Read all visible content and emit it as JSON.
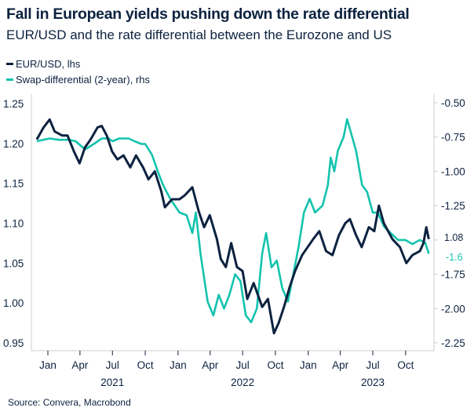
{
  "chart_data": {
    "type": "line",
    "title": "Fall in European yields pushing down the rate differential",
    "subtitle": "EUR/USD and the rate differential between the Eurozone and US",
    "source": "Source: Convera, Macrobond",
    "colors": {
      "eurusd": "#0d2240",
      "swap": "#14c3ad",
      "axis": "#cccccc"
    },
    "legend_position": "top-left",
    "grid": false,
    "x_ticks": [
      {
        "date": "2021-01-01",
        "label": "Jan"
      },
      {
        "date": "2021-04-01",
        "label": "Apr"
      },
      {
        "date": "2021-07-01",
        "label": "Jul"
      },
      {
        "date": "2021-10-01",
        "label": "Oct"
      },
      {
        "date": "2022-01-01",
        "label": "Jan"
      },
      {
        "date": "2022-04-01",
        "label": "Apr"
      },
      {
        "date": "2022-07-01",
        "label": "Jul"
      },
      {
        "date": "2022-10-01",
        "label": "Oct"
      },
      {
        "date": "2023-01-01",
        "label": "Jan"
      },
      {
        "date": "2023-04-01",
        "label": "Apr"
      },
      {
        "date": "2023-07-01",
        "label": "Jul"
      },
      {
        "date": "2023-10-01",
        "label": "Oct"
      }
    ],
    "x_years": [
      {
        "date": "2021-07-01",
        "label": "2021"
      },
      {
        "date": "2022-07-01",
        "label": "2022"
      },
      {
        "date": "2023-07-01",
        "label": "2023"
      }
    ],
    "left_axis": {
      "ylim": [
        0.95,
        1.25
      ],
      "ticks": [
        "1.25",
        "1.20",
        "1.15",
        "1.10",
        "1.05",
        "1.00",
        "0.95"
      ]
    },
    "right_axis": {
      "ylim": [
        -2.25,
        -0.5
      ],
      "ticks": [
        "-0.50",
        "-0.75",
        "-1.00",
        "-1.25",
        "-1.75",
        "-2.00",
        "-2.25"
      ]
    },
    "series": [
      {
        "name": "EUR/USD, lhs",
        "axis": "left",
        "last_label": "1.08",
        "points": [
          [
            "2020-12-01",
            1.205
          ],
          [
            "2020-12-20",
            1.22
          ],
          [
            "2021-01-06",
            1.23
          ],
          [
            "2021-01-20",
            1.215
          ],
          [
            "2021-02-10",
            1.21
          ],
          [
            "2021-02-25",
            1.21
          ],
          [
            "2021-03-15",
            1.19
          ],
          [
            "2021-03-31",
            1.175
          ],
          [
            "2021-04-15",
            1.195
          ],
          [
            "2021-05-01",
            1.205
          ],
          [
            "2021-05-20",
            1.22
          ],
          [
            "2021-06-01",
            1.222
          ],
          [
            "2021-06-15",
            1.21
          ],
          [
            "2021-06-30",
            1.19
          ],
          [
            "2021-07-15",
            1.18
          ],
          [
            "2021-08-01",
            1.185
          ],
          [
            "2021-08-20",
            1.17
          ],
          [
            "2021-09-05",
            1.185
          ],
          [
            "2021-09-25",
            1.17
          ],
          [
            "2021-10-10",
            1.155
          ],
          [
            "2021-10-28",
            1.165
          ],
          [
            "2021-11-15",
            1.14
          ],
          [
            "2021-11-25",
            1.12
          ],
          [
            "2021-12-15",
            1.13
          ],
          [
            "2022-01-05",
            1.13
          ],
          [
            "2022-01-20",
            1.135
          ],
          [
            "2022-02-10",
            1.145
          ],
          [
            "2022-02-28",
            1.115
          ],
          [
            "2022-03-15",
            1.095
          ],
          [
            "2022-03-31",
            1.11
          ],
          [
            "2022-04-20",
            1.08
          ],
          [
            "2022-05-01",
            1.055
          ],
          [
            "2022-05-15",
            1.045
          ],
          [
            "2022-05-30",
            1.075
          ],
          [
            "2022-06-15",
            1.045
          ],
          [
            "2022-07-01",
            1.04
          ],
          [
            "2022-07-14",
            1.005
          ],
          [
            "2022-08-01",
            1.025
          ],
          [
            "2022-08-25",
            0.995
          ],
          [
            "2022-09-10",
            1.005
          ],
          [
            "2022-09-27",
            0.962
          ],
          [
            "2022-10-10",
            0.975
          ],
          [
            "2022-10-25",
            0.995
          ],
          [
            "2022-11-10",
            1.02
          ],
          [
            "2022-11-25",
            1.04
          ],
          [
            "2022-12-15",
            1.06
          ],
          [
            "2023-01-15",
            1.08
          ],
          [
            "2023-02-01",
            1.09
          ],
          [
            "2023-02-20",
            1.065
          ],
          [
            "2023-03-10",
            1.06
          ],
          [
            "2023-03-28",
            1.085
          ],
          [
            "2023-04-15",
            1.1
          ],
          [
            "2023-04-28",
            1.105
          ],
          [
            "2023-05-15",
            1.085
          ],
          [
            "2023-05-31",
            1.07
          ],
          [
            "2023-06-20",
            1.095
          ],
          [
            "2023-07-05",
            1.09
          ],
          [
            "2023-07-18",
            1.122
          ],
          [
            "2023-08-01",
            1.1
          ],
          [
            "2023-08-25",
            1.08
          ],
          [
            "2023-09-15",
            1.07
          ],
          [
            "2023-10-03",
            1.05
          ],
          [
            "2023-10-20",
            1.06
          ],
          [
            "2023-11-10",
            1.065
          ],
          [
            "2023-11-20",
            1.075
          ],
          [
            "2023-11-28",
            1.095
          ],
          [
            "2023-12-05",
            1.08
          ]
        ]
      },
      {
        "name": "Swap-differential (2-year), rhs",
        "axis": "right",
        "last_label": "-1.6",
        "points": [
          [
            "2020-12-01",
            -0.78
          ],
          [
            "2021-01-06",
            -0.76
          ],
          [
            "2021-02-01",
            -0.77
          ],
          [
            "2021-03-01",
            -0.77
          ],
          [
            "2021-03-20",
            -0.78
          ],
          [
            "2021-04-15",
            -0.84
          ],
          [
            "2021-05-10",
            -0.8
          ],
          [
            "2021-06-01",
            -0.76
          ],
          [
            "2021-06-20",
            -0.76
          ],
          [
            "2021-07-01",
            -0.78
          ],
          [
            "2021-07-20",
            -0.76
          ],
          [
            "2021-08-15",
            -0.76
          ],
          [
            "2021-09-01",
            -0.78
          ],
          [
            "2021-09-20",
            -0.8
          ],
          [
            "2021-10-01",
            -0.8
          ],
          [
            "2021-10-20",
            -0.88
          ],
          [
            "2021-11-05",
            -1.0
          ],
          [
            "2021-11-20",
            -1.1
          ],
          [
            "2021-12-10",
            -1.2
          ],
          [
            "2022-01-05",
            -1.3
          ],
          [
            "2022-01-25",
            -1.32
          ],
          [
            "2022-02-10",
            -1.45
          ],
          [
            "2022-02-20",
            -1.3
          ],
          [
            "2022-03-05",
            -1.6
          ],
          [
            "2022-03-25",
            -1.95
          ],
          [
            "2022-04-10",
            -2.05
          ],
          [
            "2022-04-25",
            -1.9
          ],
          [
            "2022-05-10",
            -2.0
          ],
          [
            "2022-05-25",
            -1.9
          ],
          [
            "2022-06-10",
            -1.75
          ],
          [
            "2022-06-25",
            -1.8
          ],
          [
            "2022-07-10",
            -2.05
          ],
          [
            "2022-07-25",
            -2.1
          ],
          [
            "2022-08-10",
            -2.0
          ],
          [
            "2022-08-25",
            -1.6
          ],
          [
            "2022-09-05",
            -1.45
          ],
          [
            "2022-09-20",
            -1.7
          ],
          [
            "2022-10-05",
            -1.65
          ],
          [
            "2022-10-20",
            -1.85
          ],
          [
            "2022-11-05",
            -1.95
          ],
          [
            "2022-11-20",
            -1.75
          ],
          [
            "2022-12-05",
            -1.55
          ],
          [
            "2022-12-20",
            -1.3
          ],
          [
            "2023-01-05",
            -1.2
          ],
          [
            "2023-01-20",
            -1.3
          ],
          [
            "2023-02-10",
            -1.25
          ],
          [
            "2023-02-25",
            -1.1
          ],
          [
            "2023-03-05",
            -0.9
          ],
          [
            "2023-03-15",
            -1.0
          ],
          [
            "2023-03-25",
            -0.85
          ],
          [
            "2023-04-10",
            -0.75
          ],
          [
            "2023-04-20",
            -0.62
          ],
          [
            "2023-05-01",
            -0.72
          ],
          [
            "2023-05-15",
            -0.85
          ],
          [
            "2023-06-01",
            -1.1
          ],
          [
            "2023-06-15",
            -1.15
          ],
          [
            "2023-07-01",
            -1.3
          ],
          [
            "2023-07-15",
            -1.3
          ],
          [
            "2023-08-01",
            -1.4
          ],
          [
            "2023-08-20",
            -1.45
          ],
          [
            "2023-09-10",
            -1.5
          ],
          [
            "2023-09-30",
            -1.5
          ],
          [
            "2023-10-20",
            -1.53
          ],
          [
            "2023-11-10",
            -1.5
          ],
          [
            "2023-11-25",
            -1.52
          ],
          [
            "2023-12-05",
            -1.6
          ]
        ]
      }
    ]
  }
}
